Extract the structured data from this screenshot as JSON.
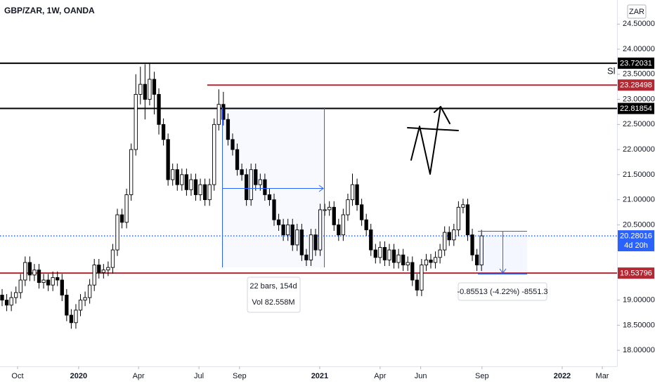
{
  "chart_data": {
    "type": "candlestick",
    "title": "GBP/ZAR, 1W, OANDA",
    "currency": "ZAR",
    "up_color": "#ffffff",
    "down_color": "#000000",
    "candles": [
      [
        19.1,
        19.22,
        18.88,
        19.0
      ],
      [
        19.0,
        19.12,
        18.78,
        18.9
      ],
      [
        18.9,
        19.17,
        18.78,
        19.05
      ],
      [
        19.05,
        19.27,
        18.93,
        19.15
      ],
      [
        19.15,
        19.52,
        19.03,
        19.4
      ],
      [
        19.4,
        19.87,
        19.28,
        19.75
      ],
      [
        19.75,
        19.87,
        19.38,
        19.5
      ],
      [
        19.5,
        19.72,
        19.38,
        19.6
      ],
      [
        19.6,
        19.72,
        19.23,
        19.35
      ],
      [
        19.35,
        19.52,
        19.23,
        19.4
      ],
      [
        19.4,
        19.52,
        19.18,
        19.3
      ],
      [
        19.3,
        19.57,
        19.18,
        19.45
      ],
      [
        19.45,
        19.57,
        19.28,
        19.4
      ],
      [
        19.4,
        19.52,
        18.98,
        19.1
      ],
      [
        19.1,
        19.22,
        18.58,
        18.7
      ],
      [
        18.7,
        18.82,
        18.43,
        18.55
      ],
      [
        18.55,
        18.92,
        18.43,
        18.8
      ],
      [
        18.8,
        19.12,
        18.68,
        19.0
      ],
      [
        19.0,
        19.17,
        18.88,
        19.05
      ],
      [
        19.05,
        19.42,
        18.93,
        19.3
      ],
      [
        19.3,
        19.82,
        19.18,
        19.7
      ],
      [
        19.7,
        19.82,
        19.43,
        19.55
      ],
      [
        19.55,
        19.72,
        19.43,
        19.6
      ],
      [
        19.6,
        19.77,
        19.48,
        19.65
      ],
      [
        19.65,
        20.12,
        19.53,
        20.0
      ],
      [
        20.0,
        20.82,
        19.88,
        20.7
      ],
      [
        20.7,
        20.82,
        20.43,
        20.55
      ],
      [
        20.55,
        21.22,
        20.43,
        21.1
      ],
      [
        21.1,
        22.12,
        20.98,
        22.0
      ],
      [
        22.0,
        23.5,
        21.88,
        23.1
      ],
      [
        23.1,
        23.65,
        22.9,
        23.3
      ],
      [
        23.3,
        23.7,
        22.6,
        23.0
      ],
      [
        23.0,
        23.72,
        22.88,
        23.4
      ],
      [
        23.4,
        23.55,
        22.7,
        23.1
      ],
      [
        23.1,
        23.22,
        22.3,
        22.5
      ],
      [
        22.5,
        22.62,
        22.08,
        22.2
      ],
      [
        22.2,
        22.32,
        21.28,
        21.4
      ],
      [
        21.4,
        21.72,
        21.28,
        21.6
      ],
      [
        21.6,
        21.72,
        21.18,
        21.3
      ],
      [
        21.3,
        21.62,
        21.18,
        21.5
      ],
      [
        21.5,
        21.62,
        21.08,
        21.2
      ],
      [
        21.2,
        21.52,
        21.08,
        21.4
      ],
      [
        21.4,
        21.52,
        20.98,
        21.1
      ],
      [
        21.1,
        21.42,
        20.98,
        21.3
      ],
      [
        21.3,
        21.42,
        20.88,
        21.0
      ],
      [
        21.0,
        21.42,
        20.88,
        21.3
      ],
      [
        21.3,
        22.62,
        21.18,
        22.5
      ],
      [
        22.5,
        23.2,
        22.38,
        22.9
      ],
      [
        22.9,
        23.15,
        22.48,
        22.6
      ],
      [
        22.6,
        22.72,
        22.08,
        22.2
      ],
      [
        22.2,
        22.32,
        21.88,
        22.0
      ],
      [
        22.0,
        22.12,
        21.48,
        21.6
      ],
      [
        21.6,
        21.72,
        21.38,
        21.5
      ],
      [
        21.5,
        21.62,
        20.88,
        21.0
      ],
      [
        21.0,
        21.72,
        20.88,
        21.6
      ],
      [
        21.6,
        21.72,
        21.18,
        21.3
      ],
      [
        21.3,
        21.52,
        21.18,
        21.4
      ],
      [
        21.4,
        21.52,
        20.98,
        21.1
      ],
      [
        21.1,
        21.22,
        20.88,
        21.0
      ],
      [
        21.0,
        21.12,
        20.48,
        20.6
      ],
      [
        20.6,
        20.72,
        20.38,
        20.5
      ],
      [
        20.5,
        20.62,
        20.18,
        20.3
      ],
      [
        20.3,
        20.62,
        20.18,
        20.5
      ],
      [
        20.5,
        20.62,
        19.98,
        20.1
      ],
      [
        20.1,
        20.52,
        19.98,
        20.4
      ],
      [
        20.4,
        20.52,
        19.78,
        19.9
      ],
      [
        19.9,
        20.02,
        19.68,
        19.8
      ],
      [
        19.8,
        20.42,
        19.68,
        20.3
      ],
      [
        20.3,
        20.42,
        19.88,
        20.0
      ],
      [
        20.0,
        20.92,
        19.88,
        20.8
      ],
      [
        20.8,
        20.92,
        20.68,
        20.8
      ],
      [
        20.8,
        20.97,
        20.68,
        20.85
      ],
      [
        20.85,
        20.97,
        20.38,
        20.5
      ],
      [
        20.5,
        20.62,
        20.18,
        20.3
      ],
      [
        20.3,
        20.82,
        20.18,
        20.7
      ],
      [
        20.7,
        21.12,
        20.58,
        21.0
      ],
      [
        21.0,
        21.52,
        20.88,
        21.3
      ],
      [
        21.3,
        21.42,
        20.78,
        20.9
      ],
      [
        20.9,
        21.02,
        20.48,
        20.6
      ],
      [
        20.6,
        20.72,
        20.28,
        20.4
      ],
      [
        20.4,
        20.52,
        19.88,
        20.0
      ],
      [
        20.0,
        20.12,
        19.73,
        19.85
      ],
      [
        19.85,
        20.17,
        19.73,
        20.05
      ],
      [
        20.05,
        20.17,
        19.68,
        19.8
      ],
      [
        19.8,
        20.12,
        19.68,
        20.0
      ],
      [
        20.0,
        20.12,
        19.63,
        19.75
      ],
      [
        19.75,
        20.02,
        19.63,
        19.9
      ],
      [
        19.9,
        20.02,
        19.58,
        19.7
      ],
      [
        19.7,
        19.87,
        19.58,
        19.75
      ],
      [
        19.75,
        19.87,
        19.28,
        19.4
      ],
      [
        19.4,
        19.52,
        19.08,
        19.2
      ],
      [
        19.2,
        19.82,
        19.08,
        19.7
      ],
      [
        19.7,
        19.92,
        19.58,
        19.8
      ],
      [
        19.8,
        19.92,
        19.63,
        19.75
      ],
      [
        19.75,
        19.97,
        19.63,
        19.85
      ],
      [
        19.85,
        20.12,
        19.73,
        20.0
      ],
      [
        20.0,
        20.47,
        19.88,
        20.35
      ],
      [
        20.35,
        20.47,
        20.08,
        20.2
      ],
      [
        20.2,
        20.52,
        20.08,
        20.4
      ],
      [
        20.4,
        20.97,
        20.28,
        20.85
      ],
      [
        20.85,
        21.02,
        20.73,
        20.9
      ],
      [
        20.9,
        21.02,
        20.18,
        20.3
      ],
      [
        20.3,
        20.42,
        19.78,
        19.9
      ],
      [
        19.9,
        20.02,
        19.58,
        19.7
      ],
      [
        19.7,
        20.4,
        19.58,
        20.28
      ]
    ],
    "xlim": [
      -0.46,
      133.4
    ],
    "xticks": [
      {
        "value": 3.35,
        "label": "Oct"
      },
      {
        "value": 16.6,
        "label": "2020"
      },
      {
        "value": 29.6,
        "label": "Apr"
      },
      {
        "value": 42.7,
        "label": "Jul"
      },
      {
        "value": 51.5,
        "label": "Sep"
      },
      {
        "value": 68.9,
        "label": "2021"
      },
      {
        "value": 82.0,
        "label": "Apr"
      },
      {
        "value": 90.8,
        "label": "Jun"
      },
      {
        "value": 104.1,
        "label": "Sep"
      },
      {
        "value": 121.5,
        "label": "2022"
      },
      {
        "value": 130.2,
        "label": "Mar"
      }
    ],
    "ylim": [
      17.68,
      24.98
    ],
    "yticks": [
      {
        "value": 18.0,
        "label": "18.00000"
      },
      {
        "value": 18.5,
        "label": "18.50000"
      },
      {
        "value": 19.0,
        "label": "19.00000"
      },
      {
        "value": 20.5,
        "label": "20.50000"
      },
      {
        "value": 21.0,
        "label": "21.00000"
      },
      {
        "value": 21.5,
        "label": "21.50000"
      },
      {
        "value": 22.0,
        "label": "22.00000"
      },
      {
        "value": 22.5,
        "label": "22.50000"
      },
      {
        "value": 23.0,
        "label": "23.00000"
      },
      {
        "value": 23.5,
        "label": "23.50000"
      },
      {
        "value": 24.0,
        "label": "24.00000"
      },
      {
        "value": 24.5,
        "label": "24.50000"
      }
    ],
    "grid": false,
    "levels": [
      {
        "value": 23.72031,
        "color": "#000000"
      },
      {
        "value": 23.28498,
        "color": "#b22833",
        "x_start": 44.5
      },
      {
        "value": 22.81854,
        "color": "#000000"
      },
      {
        "value": 19.53796,
        "color": "#b22833"
      }
    ],
    "current": {
      "value": 20.28016,
      "color": "#2962ff",
      "countdown": "4d 20h"
    },
    "annotations": {
      "date_range": [
        "22 bars, 154d",
        "Vol 82.558M"
      ],
      "price_range": "-0.85513 (-4.22%) -8551.3",
      "note": "Sl"
    }
  }
}
